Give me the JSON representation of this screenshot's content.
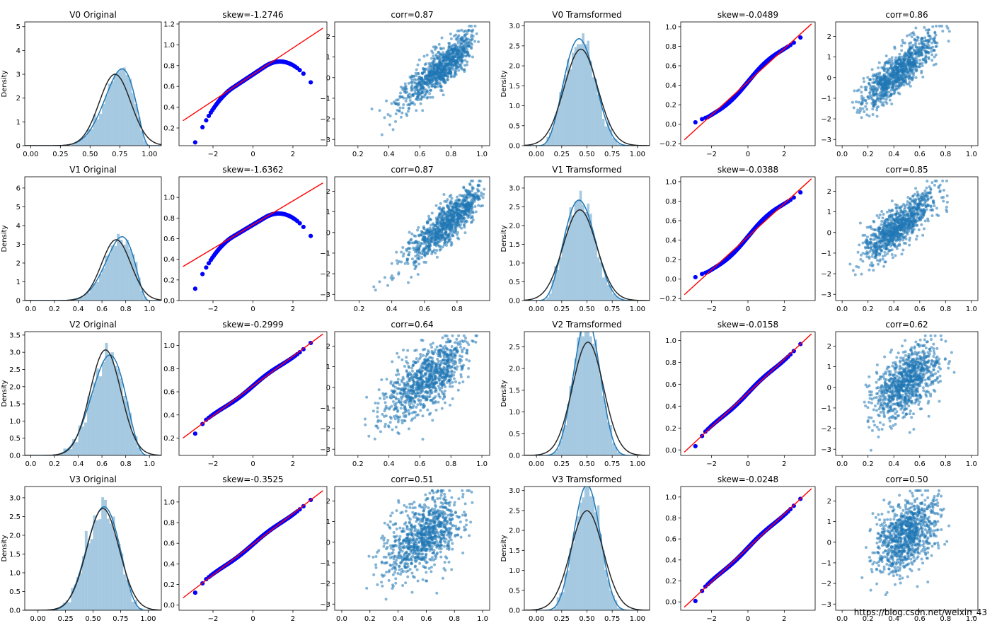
{
  "figure": {
    "watermark": "https://blog.csdn.net/weixin_43"
  },
  "colors": {
    "hist": "#1f77b4",
    "kde": "#1f77b4",
    "normfit": "#262626",
    "qq_points": "#0000ff",
    "qq_line": "#ff0000",
    "scatter": "#1f77b4"
  },
  "chart_data": [
    {
      "type": "hist",
      "dist": "beta",
      "a": 9,
      "b": 3.4,
      "mu": 0.71,
      "sd": 0.133,
      "title": "V0 Original",
      "ylabel": "Density",
      "xlim": [
        -0.05,
        1.1
      ],
      "ylim": [
        0,
        5.2
      ],
      "xticks": [
        0,
        0.25,
        0.5,
        0.75,
        1
      ],
      "xtick_labels": [
        "0.00",
        "0.25",
        "0.50",
        "0.75",
        "1.00"
      ],
      "yticks": [
        0,
        1,
        2,
        3,
        4,
        5
      ],
      "ytick_labels": [
        "0",
        "1",
        "2",
        "3",
        "4",
        "5"
      ]
    },
    {
      "type": "qq",
      "title": "skew=-1.2746",
      "n": 90,
      "kind": "skewed",
      "xlim": [
        -3.7,
        3.7
      ],
      "ylim": [
        0.03,
        1.22
      ],
      "line": [
        [
          -3.5,
          0.27
        ],
        [
          3.5,
          1.16
        ]
      ],
      "xticks": [
        -2,
        0,
        2
      ],
      "xtick_labels": [
        "−2",
        "0",
        "2"
      ],
      "yticks": [
        0.2,
        0.4,
        0.6,
        0.8,
        1.0,
        1.2
      ],
      "ytick_labels": [
        "0.2",
        "0.4",
        "0.6",
        "0.8",
        "1.0",
        "1.2"
      ]
    },
    {
      "type": "scatter",
      "title": "corr=0.87",
      "corr": 0.87,
      "dist": "beta",
      "a": 9,
      "b": 3.4,
      "mu": 0.71,
      "sd": 0.133,
      "n": 900,
      "xlim": [
        0.05,
        1.05
      ],
      "ylim": [
        -3.3,
        2.7
      ],
      "xticks": [
        0.2,
        0.4,
        0.6,
        0.8,
        1.0
      ],
      "xtick_labels": [
        "0.2",
        "0.4",
        "0.6",
        "0.8",
        "1.0"
      ],
      "yticks": [
        -3,
        -2,
        -1,
        0,
        1,
        2
      ],
      "ytick_labels": [
        "−3",
        "−2",
        "−1",
        "0",
        "1",
        "2"
      ]
    },
    {
      "type": "hist",
      "dist": "beta",
      "a": 5,
      "b": 6.5,
      "mu": 0.44,
      "sd": 0.165,
      "title": "V0 Tramsformed",
      "ylabel": "Density",
      "xlim": [
        -0.12,
        1.12
      ],
      "ylim": [
        0,
        3.1
      ],
      "xticks": [
        0,
        0.25,
        0.5,
        0.75,
        1
      ],
      "xtick_labels": [
        "0.00",
        "0.25",
        "0.50",
        "0.75",
        "1.00"
      ],
      "yticks": [
        0,
        0.5,
        1,
        1.5,
        2,
        2.5,
        3
      ],
      "ytick_labels": [
        "0.0",
        "0.5",
        "1.0",
        "1.5",
        "2.0",
        "2.5",
        "3.0"
      ]
    },
    {
      "type": "qq",
      "title": "skew=-0.0489",
      "n": 90,
      "kind": "straight",
      "xlim": [
        -3.7,
        3.7
      ],
      "ylim": [
        -0.22,
        1.05
      ],
      "line": [
        [
          -3.5,
          -0.16
        ],
        [
          3.5,
          1.03
        ]
      ],
      "xticks": [
        -2,
        0,
        2
      ],
      "xtick_labels": [
        "−2",
        "0",
        "2"
      ],
      "yticks": [
        -0.2,
        0,
        0.2,
        0.4,
        0.6,
        0.8,
        1.0
      ],
      "ytick_labels": [
        "−0.2",
        "0.0",
        "0.2",
        "0.4",
        "0.6",
        "0.8",
        "1.0"
      ]
    },
    {
      "type": "scatter",
      "title": "corr=0.86",
      "corr": 0.86,
      "dist": "beta",
      "a": 5,
      "b": 6.5,
      "mu": 0.44,
      "sd": 0.165,
      "n": 900,
      "xlim": [
        -0.05,
        1.05
      ],
      "ylim": [
        -3.3,
        2.7
      ],
      "xticks": [
        0,
        0.2,
        0.4,
        0.6,
        0.8,
        1.0
      ],
      "xtick_labels": [
        "0.0",
        "0.2",
        "0.4",
        "0.6",
        "0.8",
        "1.0"
      ],
      "yticks": [
        -3,
        -2,
        -1,
        0,
        1,
        2
      ],
      "ytick_labels": [
        "−3",
        "−2",
        "−1",
        "0",
        "1",
        "2"
      ]
    },
    {
      "type": "hist",
      "dist": "beta",
      "a": 10,
      "b": 3.7,
      "mu": 0.72,
      "sd": 0.123,
      "title": "V1 Original",
      "ylabel": "Density",
      "xlim": [
        -0.05,
        1.1
      ],
      "ylim": [
        0,
        6.6
      ],
      "xticks": [
        0,
        0.2,
        0.4,
        0.6,
        0.8,
        1.0
      ],
      "xtick_labels": [
        "0.0",
        "0.2",
        "0.4",
        "0.6",
        "0.8",
        "1.0"
      ],
      "yticks": [
        0,
        1,
        2,
        3,
        4,
        5,
        6
      ],
      "ytick_labels": [
        "0",
        "1",
        "2",
        "3",
        "4",
        "5",
        "6"
      ]
    },
    {
      "type": "qq",
      "title": "skew=-1.6362",
      "n": 90,
      "kind": "skewed",
      "xlim": [
        -3.7,
        3.7
      ],
      "ylim": [
        0.0,
        1.2
      ],
      "line": [
        [
          -3.5,
          0.33
        ],
        [
          3.5,
          1.14
        ]
      ],
      "xticks": [
        -2,
        0,
        2
      ],
      "xtick_labels": [
        "−2",
        "0",
        "2"
      ],
      "yticks": [
        0,
        0.2,
        0.4,
        0.6,
        0.8,
        1.0
      ],
      "ytick_labels": [
        "0.0",
        "0.2",
        "0.4",
        "0.6",
        "0.8",
        "1.0"
      ]
    },
    {
      "type": "scatter",
      "title": "corr=0.87",
      "corr": 0.87,
      "dist": "beta",
      "a": 10,
      "b": 3.7,
      "mu": 0.72,
      "sd": 0.123,
      "n": 900,
      "xlim": [
        0.05,
        1.0
      ],
      "ylim": [
        -3.3,
        2.7
      ],
      "xticks": [
        0.2,
        0.4,
        0.6,
        0.8
      ],
      "xtick_labels": [
        "0.2",
        "0.4",
        "0.6",
        "0.8"
      ],
      "yticks": [
        -3,
        -2,
        -1,
        0,
        1,
        2
      ],
      "ytick_labels": [
        "−3",
        "−2",
        "−1",
        "0",
        "1",
        "2"
      ]
    },
    {
      "type": "hist",
      "dist": "beta",
      "a": 5,
      "b": 6.5,
      "mu": 0.43,
      "sd": 0.165,
      "title": "V1 Tramsformed",
      "ylabel": "Density",
      "xlim": [
        -0.12,
        1.12
      ],
      "ylim": [
        0,
        3.3
      ],
      "xticks": [
        0,
        0.25,
        0.5,
        0.75,
        1
      ],
      "xtick_labels": [
        "0.00",
        "0.25",
        "0.50",
        "0.75",
        "1.00"
      ],
      "yticks": [
        0,
        0.5,
        1,
        1.5,
        2,
        2.5,
        3
      ],
      "ytick_labels": [
        "0.0",
        "0.5",
        "1.0",
        "1.5",
        "2.0",
        "2.5",
        "3.0"
      ]
    },
    {
      "type": "qq",
      "title": "skew=-0.0388",
      "n": 90,
      "kind": "straight",
      "xlim": [
        -3.7,
        3.7
      ],
      "ylim": [
        -0.22,
        1.05
      ],
      "line": [
        [
          -3.5,
          -0.16
        ],
        [
          3.5,
          1.03
        ]
      ],
      "xticks": [
        -2,
        0,
        2
      ],
      "xtick_labels": [
        "−2",
        "0",
        "2"
      ],
      "yticks": [
        -0.2,
        0,
        0.2,
        0.4,
        0.6,
        0.8,
        1.0
      ],
      "ytick_labels": [
        "−0.2",
        "0.0",
        "0.2",
        "0.4",
        "0.6",
        "0.8",
        "1.0"
      ]
    },
    {
      "type": "scatter",
      "title": "corr=0.85",
      "corr": 0.85,
      "dist": "beta",
      "a": 5,
      "b": 6.5,
      "mu": 0.43,
      "sd": 0.165,
      "n": 900,
      "xlim": [
        -0.05,
        1.05
      ],
      "ylim": [
        -3.3,
        2.7
      ],
      "xticks": [
        0,
        0.2,
        0.4,
        0.6,
        0.8,
        1.0
      ],
      "xtick_labels": [
        "0.0",
        "0.2",
        "0.4",
        "0.6",
        "0.8",
        "1.0"
      ],
      "yticks": [
        -3,
        -2,
        -1,
        0,
        1,
        2
      ],
      "ytick_labels": [
        "−3",
        "−2",
        "−1",
        "0",
        "1",
        "2"
      ]
    },
    {
      "type": "hist",
      "dist": "beta",
      "a": 8,
      "b": 4.5,
      "mu": 0.63,
      "sd": 0.13,
      "title": "V2 Original",
      "ylabel": "Density",
      "xlim": [
        -0.05,
        1.1
      ],
      "ylim": [
        0,
        3.6
      ],
      "xticks": [
        0,
        0.2,
        0.4,
        0.6,
        0.8,
        1.0
      ],
      "xtick_labels": [
        "0.0",
        "0.2",
        "0.4",
        "0.6",
        "0.8",
        "1.0"
      ],
      "yticks": [
        0,
        0.5,
        1,
        1.5,
        2,
        2.5,
        3,
        3.5
      ],
      "ytick_labels": [
        "0.0",
        "0.5",
        "1.0",
        "1.5",
        "2.0",
        "2.5",
        "3.0",
        "3.5"
      ]
    },
    {
      "type": "qq",
      "title": "skew=-0.2999",
      "n": 90,
      "kind": "mild",
      "xlim": [
        -3.7,
        3.7
      ],
      "ylim": [
        0.05,
        1.12
      ],
      "line": [
        [
          -3.5,
          0.2
        ],
        [
          3.5,
          1.1
        ]
      ],
      "xticks": [
        -2,
        0,
        2
      ],
      "xtick_labels": [
        "−2",
        "0",
        "2"
      ],
      "yticks": [
        0.2,
        0.4,
        0.6,
        0.8,
        1.0
      ],
      "ytick_labels": [
        "0.2",
        "0.4",
        "0.6",
        "0.8",
        "1.0"
      ]
    },
    {
      "type": "scatter",
      "title": "corr=0.64",
      "corr": 0.64,
      "dist": "beta",
      "a": 8,
      "b": 4.5,
      "mu": 0.63,
      "sd": 0.13,
      "n": 900,
      "xlim": [
        0.05,
        1.05
      ],
      "ylim": [
        -3.3,
        2.7
      ],
      "xticks": [
        0.2,
        0.4,
        0.6,
        0.8,
        1.0
      ],
      "xtick_labels": [
        "0.2",
        "0.4",
        "0.6",
        "0.8",
        "1.0"
      ],
      "yticks": [
        -3,
        -2,
        -1,
        0,
        1,
        2
      ],
      "ytick_labels": [
        "−3",
        "−2",
        "−1",
        "0",
        "1",
        "2"
      ]
    },
    {
      "type": "hist",
      "dist": "beta",
      "a": 8,
      "b": 8,
      "mu": 0.51,
      "sd": 0.153,
      "title": "V2 Tramsformed",
      "ylabel": "Density",
      "xlim": [
        -0.12,
        1.12
      ],
      "ylim": [
        0,
        2.85
      ],
      "xticks": [
        0,
        0.25,
        0.5,
        0.75,
        1
      ],
      "xtick_labels": [
        "0.00",
        "0.25",
        "0.50",
        "0.75",
        "1.00"
      ],
      "yticks": [
        0,
        0.5,
        1,
        1.5,
        2,
        2.5
      ],
      "ytick_labels": [
        "0.0",
        "0.5",
        "1.0",
        "1.5",
        "2.0",
        "2.5"
      ]
    },
    {
      "type": "qq",
      "title": "skew=-0.0158",
      "n": 90,
      "kind": "mild",
      "xlim": [
        -3.7,
        3.7
      ],
      "ylim": [
        -0.05,
        1.08
      ],
      "line": [
        [
          -3.5,
          -0.02
        ],
        [
          3.5,
          1.06
        ]
      ],
      "xticks": [
        -2,
        0,
        2
      ],
      "xtick_labels": [
        "−2",
        "0",
        "2"
      ],
      "yticks": [
        0,
        0.2,
        0.4,
        0.6,
        0.8,
        1.0
      ],
      "ytick_labels": [
        "0.0",
        "0.2",
        "0.4",
        "0.6",
        "0.8",
        "1.0"
      ]
    },
    {
      "type": "scatter",
      "title": "corr=0.62",
      "corr": 0.62,
      "dist": "beta",
      "a": 8,
      "b": 8,
      "mu": 0.51,
      "sd": 0.153,
      "n": 900,
      "xlim": [
        -0.05,
        1.05
      ],
      "ylim": [
        -3.3,
        2.7
      ],
      "xticks": [
        0,
        0.2,
        0.4,
        0.6,
        0.8,
        1.0
      ],
      "xtick_labels": [
        "0.0",
        "0.2",
        "0.4",
        "0.6",
        "0.8",
        "1.0"
      ],
      "yticks": [
        -3,
        -2,
        -1,
        0,
        1,
        2
      ],
      "ytick_labels": [
        "−3",
        "−2",
        "−1",
        "0",
        "1",
        "2"
      ]
    },
    {
      "type": "hist",
      "dist": "beta",
      "a": 7,
      "b": 5,
      "mu": 0.59,
      "sd": 0.147,
      "title": "V3 Original",
      "ylabel": "Density",
      "xlim": [
        -0.12,
        1.12
      ],
      "ylim": [
        0,
        3.3
      ],
      "xticks": [
        0,
        0.25,
        0.5,
        0.75,
        1
      ],
      "xtick_labels": [
        "0.00",
        "0.25",
        "0.50",
        "0.75",
        "1.00"
      ],
      "yticks": [
        0,
        0.5,
        1,
        1.5,
        2,
        2.5,
        3
      ],
      "ytick_labels": [
        "0.0",
        "0.5",
        "1.0",
        "1.5",
        "2.0",
        "2.5",
        "3.0"
      ]
    },
    {
      "type": "qq",
      "title": "skew=-0.3525",
      "n": 90,
      "kind": "mild",
      "xlim": [
        -3.7,
        3.7
      ],
      "ylim": [
        -0.05,
        1.15
      ],
      "line": [
        [
          -3.5,
          0.07
        ],
        [
          3.5,
          1.11
        ]
      ],
      "xticks": [
        -2,
        0,
        2
      ],
      "xtick_labels": [
        "−2",
        "0",
        "2"
      ],
      "yticks": [
        0,
        0.2,
        0.4,
        0.6,
        0.8,
        1.0
      ],
      "ytick_labels": [
        "0.0",
        "0.2",
        "0.4",
        "0.6",
        "0.8",
        "1.0"
      ]
    },
    {
      "type": "scatter",
      "title": "corr=0.51",
      "corr": 0.51,
      "dist": "beta",
      "a": 7,
      "b": 5,
      "mu": 0.59,
      "sd": 0.147,
      "n": 900,
      "xlim": [
        -0.05,
        1.05
      ],
      "ylim": [
        -3.3,
        2.7
      ],
      "xticks": [
        0,
        0.2,
        0.4,
        0.6,
        0.8,
        1.0
      ],
      "xtick_labels": [
        "0.0",
        "0.2",
        "0.4",
        "0.6",
        "0.8",
        "1.0"
      ],
      "yticks": [
        -3,
        -2,
        -1,
        0,
        1,
        2
      ],
      "ytick_labels": [
        "−3",
        "−2",
        "−1",
        "0",
        "1",
        "2"
      ]
    },
    {
      "type": "hist",
      "dist": "beta",
      "a": 8,
      "b": 8,
      "mu": 0.5,
      "sd": 0.16,
      "title": "V3 Tramsformed",
      "ylabel": "Density",
      "xlim": [
        -0.12,
        1.12
      ],
      "ylim": [
        0,
        3.1
      ],
      "xticks": [
        0,
        0.25,
        0.5,
        0.75,
        1
      ],
      "xtick_labels": [
        "0.00",
        "0.25",
        "0.50",
        "0.75",
        "1.00"
      ],
      "yticks": [
        0,
        0.5,
        1,
        1.5,
        2,
        2.5,
        3
      ],
      "ytick_labels": [
        "0.0",
        "0.5",
        "1.0",
        "1.5",
        "2.0",
        "2.5",
        "3.0"
      ]
    },
    {
      "type": "qq",
      "title": "skew=-0.0248",
      "n": 90,
      "kind": "mild",
      "xlim": [
        -3.7,
        3.7
      ],
      "ylim": [
        -0.08,
        1.1
      ],
      "line": [
        [
          -3.5,
          -0.05
        ],
        [
          3.5,
          1.08
        ]
      ],
      "xticks": [
        -2,
        0,
        2
      ],
      "xtick_labels": [
        "−2",
        "0",
        "2"
      ],
      "yticks": [
        0,
        0.2,
        0.4,
        0.6,
        0.8,
        1.0
      ],
      "ytick_labels": [
        "0.0",
        "0.2",
        "0.4",
        "0.6",
        "0.8",
        "1.0"
      ]
    },
    {
      "type": "scatter",
      "title": "corr=0.50",
      "corr": 0.5,
      "dist": "beta",
      "a": 8,
      "b": 8,
      "mu": 0.5,
      "sd": 0.16,
      "n": 900,
      "xlim": [
        -0.05,
        1.05
      ],
      "ylim": [
        -3.3,
        2.7
      ],
      "xticks": [
        0,
        0.2,
        0.4,
        0.6,
        0.8,
        1.0
      ],
      "xtick_labels": [
        "0.0",
        "0.2",
        "0.4",
        "0.6",
        "0.8",
        "1.0"
      ],
      "yticks": [
        -3,
        -2,
        -1,
        0,
        1,
        2
      ],
      "ytick_labels": [
        "−3",
        "−2",
        "−1",
        "0",
        "1",
        "2"
      ]
    }
  ]
}
